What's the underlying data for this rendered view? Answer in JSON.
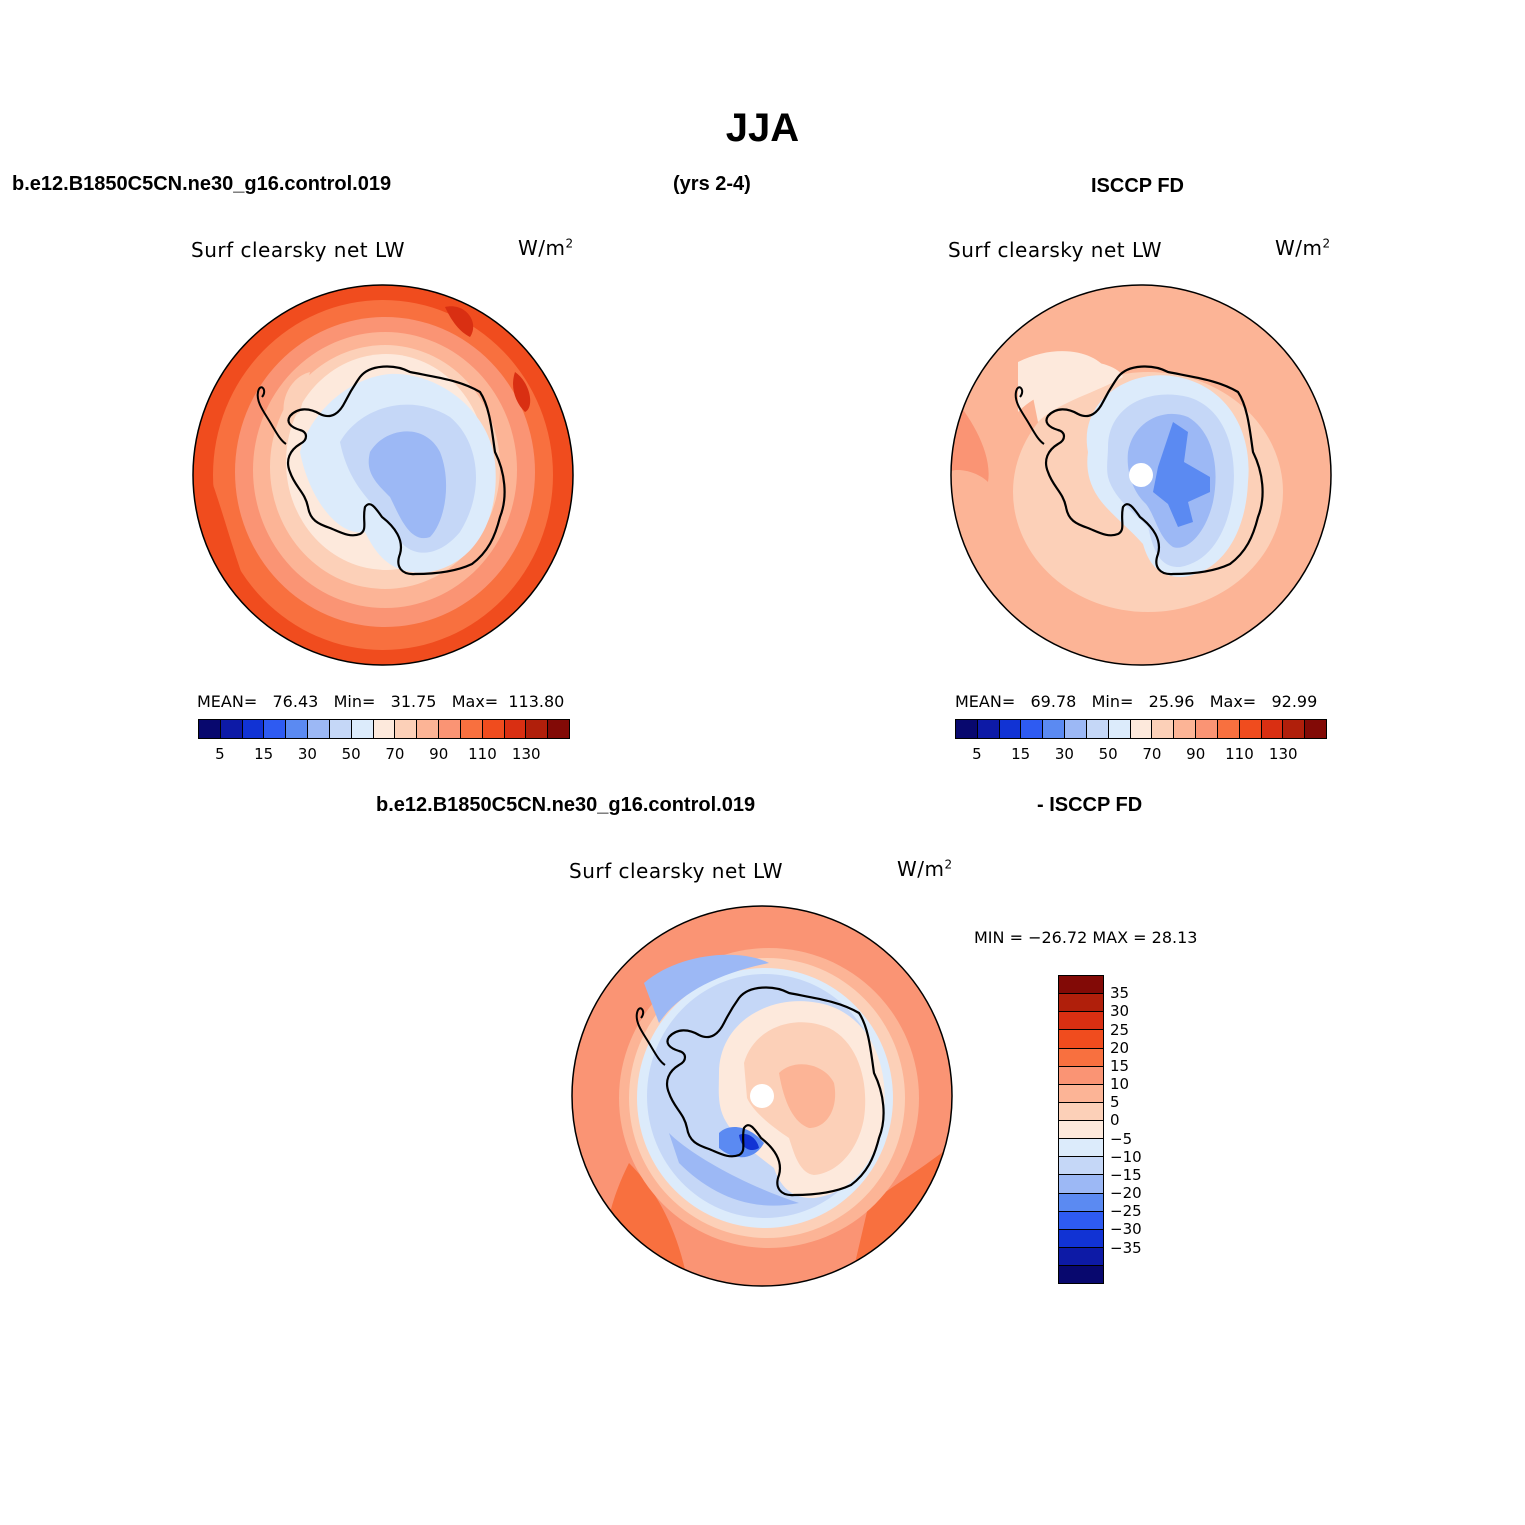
{
  "title": "JJA",
  "header": {
    "case_name": "b.e12.B1850C5CN.ne30_g16.control.019",
    "years": "(yrs 2-4)",
    "obs_name": "ISCCP FD",
    "diff_case": "b.e12.B1850C5CN.ne30_g16.control.019",
    "diff_obs": "- ISCCP FD"
  },
  "colors": {
    "abs_scale": [
      "#08086e",
      "#0d1aa6",
      "#1133d4",
      "#2e5bf2",
      "#5b8af2",
      "#9cb8f5",
      "#c5d7f7",
      "#dcebfb",
      "#fde9dc",
      "#fcd0b8",
      "#fcb496",
      "#fa9474",
      "#f8703f",
      "#f04c1e",
      "#d92f12",
      "#b01f0b",
      "#820a06"
    ],
    "diff_scale_top_to_bottom": [
      "#820a06",
      "#b01f0b",
      "#d92f12",
      "#f04c1e",
      "#f8703f",
      "#fa9474",
      "#fcb496",
      "#fcd0b8",
      "#fde9dc",
      "#dcebfb",
      "#c5d7f7",
      "#9cb8f5",
      "#5b8af2",
      "#2e5bf2",
      "#1133d4",
      "#0d1aa6",
      "#08086e"
    ]
  },
  "panels": {
    "model": {
      "title": "Surf clearsky net LW",
      "unit_base": "W/m",
      "unit_exp": "2",
      "mean_label": "MEAN=",
      "mean": "76.43",
      "min_label": "Min=",
      "min": "31.75",
      "max_label": "Max=",
      "max": "113.80",
      "ticks": [
        "5",
        "15",
        "30",
        "50",
        "70",
        "90",
        "110",
        "130"
      ]
    },
    "obs": {
      "title": "Surf clearsky net LW",
      "unit_base": "W/m",
      "unit_exp": "2",
      "mean_label": "MEAN=",
      "mean": "69.78",
      "min_label": "Min=",
      "min": "25.96",
      "max_label": "Max=",
      "max": "92.99",
      "ticks": [
        "5",
        "15",
        "30",
        "50",
        "70",
        "90",
        "110",
        "130"
      ]
    },
    "diff": {
      "title": "Surf clearsky net LW",
      "unit_base": "W/m",
      "unit_exp": "2",
      "minmax_text": "MIN = −26.72 MAX =   28.13",
      "ticks": [
        "35",
        "30",
        "25",
        "20",
        "15",
        "10",
        "5",
        "0",
        "−5",
        "−10",
        "−15",
        "−20",
        "−25",
        "−30",
        "−35"
      ]
    }
  }
}
